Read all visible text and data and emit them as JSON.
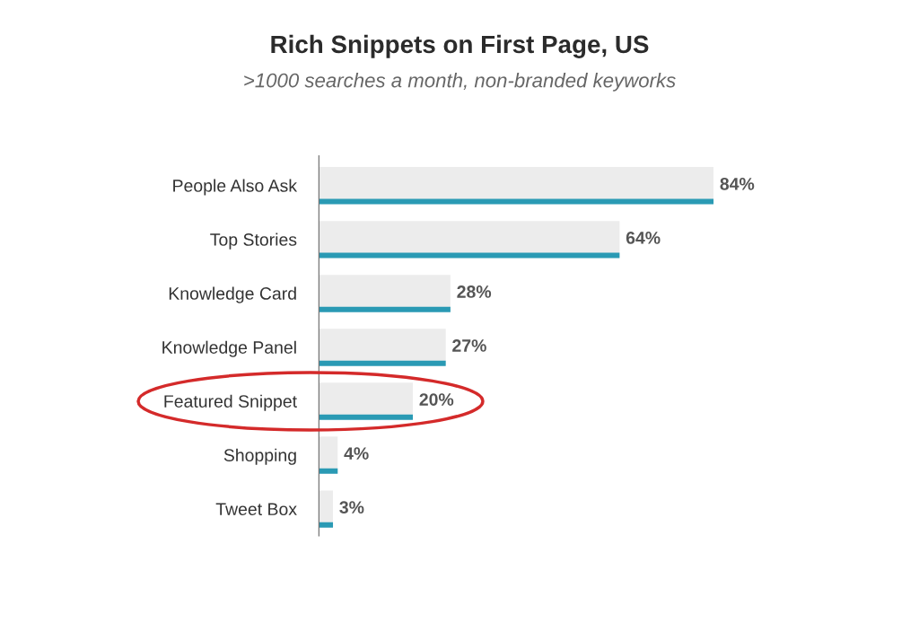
{
  "chart_data": {
    "type": "bar",
    "orientation": "horizontal",
    "title": "Rich Snippets on First Page, US",
    "subtitle": ">1000 searches a month, non-branded keyworks",
    "categories": [
      "People Also Ask",
      "Top Stories",
      "Knowledge Card",
      "Knowledge Panel",
      "Featured Snippet",
      "Shopping",
      "Tweet Box"
    ],
    "series": [
      {
        "color": "#ececec",
        "values": [
          84,
          64,
          28,
          27,
          20,
          4,
          3
        ],
        "value_labels": [
          "84%",
          "64%",
          "28%",
          "27%",
          "20%",
          "4%",
          "3%"
        ]
      },
      {
        "color": "#2a9ab4",
        "values": [
          84,
          64,
          28,
          27,
          20,
          4,
          3
        ]
      }
    ],
    "tick_labels": "y",
    "grid": false,
    "legend": false
  }
}
